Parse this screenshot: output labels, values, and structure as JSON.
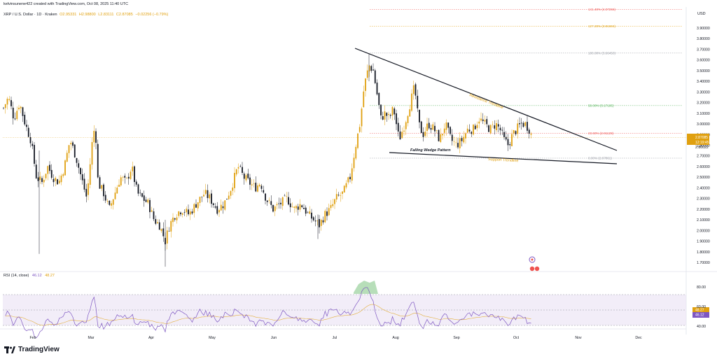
{
  "header": {
    "credit": "kelvinsunene422 created with TradingView.com, Oct 08, 2025 11:40 UTC",
    "symbol": "XRP / U.S. Dollar · 1D · Kraken",
    "open": "O2.95331",
    "high": "H2.98800",
    "low": "L2.83111",
    "close": "C2.87085",
    "change": "−0.02256 (−0.79%)"
  },
  "currency_label": "USD",
  "brand": {
    "name": "TradingView"
  },
  "colors": {
    "up": "#e0a00f",
    "down": "#131722",
    "fib_red": "#ef5350",
    "fib_green": "#4caf50",
    "fib_orange": "#e0a00f",
    "rsi": "#7e57c2",
    "rsi_ma": "#e0a00f"
  },
  "price_tags": {
    "last_price": "2.87085",
    "countdown": "12:19:45",
    "level_tag": "2.80022"
  },
  "annotations": {
    "resistance": "Resistance Trendline",
    "support": "Support Trendline",
    "pattern": "Falling Wedge Pattern"
  },
  "fib_levels": [
    {
      "label": "141.40% (4.07266)",
      "price": 4.07266,
      "color": "#ef5350"
    },
    {
      "label": "127.20% (3.91604)",
      "price": 3.91604,
      "color": "#e0a00f"
    },
    {
      "label": "100.00% (3.66450)",
      "price": 3.6645,
      "color": "#9598a1"
    },
    {
      "label": "50.00% (3.17195)",
      "price": 3.17195,
      "color": "#4caf50"
    },
    {
      "label": "23.60% (2.91128)",
      "price": 2.91128,
      "color": "#ef5350"
    },
    {
      "label": "0.00% (2.67861)",
      "price": 2.67861,
      "color": "#9598a1"
    }
  ],
  "chart_data": {
    "type": "candlestick",
    "title": "XRP / U.S. Dollar · 1D · Kraken",
    "ylim": [
      1.6,
      4.1
    ],
    "y_ticks": [
      "3.90000",
      "3.80000",
      "3.70000",
      "3.60000",
      "3.50000",
      "3.40000",
      "3.30000",
      "3.20000",
      "3.10000",
      "3.00000",
      "2.90000",
      "2.80000",
      "2.70000",
      "2.60000",
      "2.50000",
      "2.40000",
      "2.30000",
      "2.20000",
      "2.10000",
      "2.00000",
      "1.90000",
      "1.80000",
      "1.70000"
    ],
    "x_ticks": [
      "Feb",
      "Mar",
      "Apr",
      "May",
      "Jun",
      "Jul",
      "Aug",
      "Sep",
      "Oct",
      "Nov",
      "Dec"
    ],
    "monthly_close_approx": [
      {
        "month": "Jan",
        "close": 3.1
      },
      {
        "month": "Feb",
        "close": 2.2
      },
      {
        "month": "Mar",
        "close": 2.1
      },
      {
        "month": "Apr",
        "close": 2.25
      },
      {
        "month": "May",
        "close": 2.2
      },
      {
        "month": "Jun",
        "close": 2.2
      },
      {
        "month": "Jul",
        "close": 3.0
      },
      {
        "month": "Aug",
        "close": 2.8
      },
      {
        "month": "Sep",
        "close": 2.95
      }
    ],
    "last_close": 2.87085,
    "rsi": {
      "label": "RSI (14, close)",
      "value": "46.12",
      "ma_value": "48.27",
      "ylim": [
        30,
        90
      ],
      "y_ticks": [
        "80.00",
        "60.00",
        "40.00"
      ],
      "bands": [
        70,
        50,
        30
      ]
    }
  }
}
